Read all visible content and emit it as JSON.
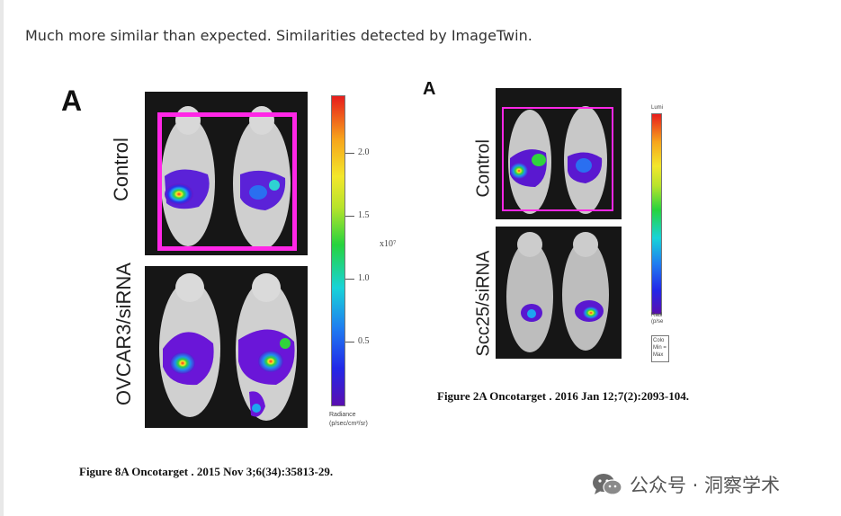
{
  "intro_text": "Much more similar than expected. Similarities detected by ImageTwin.",
  "figure_left": {
    "panel_letter": "A",
    "row_labels": [
      "Control",
      "OVCAR3/siRNA"
    ],
    "colorbar_ticks": [
      "2.0",
      "1.5",
      "1.0",
      "0.5"
    ],
    "colorbar_exponent": "x10⁷",
    "colorbar_title": "Radiance",
    "colorbar_units": "(p/sec/cm²/sr)",
    "caption": "Figure 8A Oncotarget . 2015 Nov 3;6(34):35813-29.",
    "highlight_color": "#ff27e6"
  },
  "figure_right": {
    "panel_letter": "A",
    "row_labels": [
      "Control",
      "Scc25/siRNA"
    ],
    "colorbar_top_label": "Lumi",
    "colorbar_bottom_label_1": "Radi",
    "colorbar_bottom_label_2": "(p/se",
    "legend_lines": [
      "Colo",
      "Min =",
      "Max"
    ],
    "caption": "Figure 2A Oncotarget . 2016 Jan 12;7(2):2093-104.",
    "highlight_color": "#ff27e6"
  },
  "watermark": {
    "icon": "wechat-icon",
    "text": "公众号 · 洞察学术"
  }
}
